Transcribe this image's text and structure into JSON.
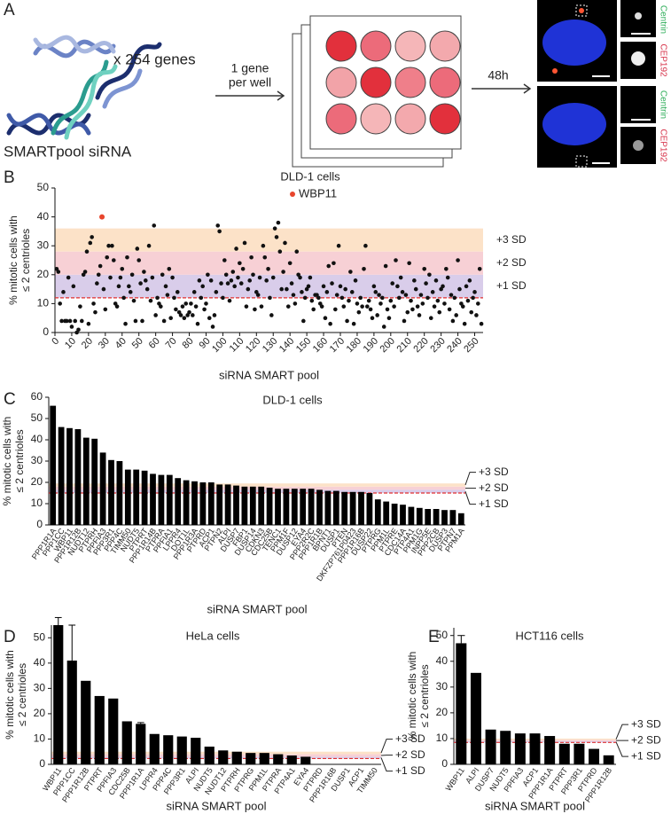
{
  "panel_labels": [
    "A",
    "B",
    "C",
    "D",
    "E"
  ],
  "schematic": {
    "genes_label": "x 254 genes",
    "sirna_label": "SMARTpool siRNA",
    "arrow1_label": [
      "1 gene",
      "per well"
    ],
    "arrow2_label": "48h",
    "stain_labels": [
      "Centrin",
      "CEP192",
      "Centrin",
      "CEP192"
    ]
  },
  "chart_data": [
    {
      "type": "scatter",
      "title": "DLD-1 cells",
      "x_label": "siRNA SMART pool",
      "y_label": [
        "% mitotic cells with",
        "≤ 2 centrioles"
      ],
      "xlim": [
        0,
        255
      ],
      "xticks": [
        0,
        10,
        20,
        30,
        40,
        50,
        60,
        70,
        80,
        90,
        100,
        110,
        120,
        130,
        140,
        150,
        160,
        170,
        180,
        190,
        200,
        210,
        220,
        230,
        240,
        250
      ],
      "ylim": [
        0,
        50
      ],
      "yticks": [
        0,
        10,
        20,
        30,
        40,
        50
      ],
      "thresholds": {
        "mean": 12,
        "levels": [
          20,
          28,
          36
        ],
        "labels": [
          "+1 SD",
          "+2 SD",
          "+3 SD"
        ],
        "colors": [
          "#d9cdea",
          "#f7d0d5",
          "#fce2c8"
        ],
        "mean_color": "#e03030"
      },
      "series": [
        {
          "color": "#111111",
          "x": [
            1,
            2,
            3,
            4,
            5,
            6,
            7,
            8,
            9,
            10,
            11,
            12,
            13,
            14,
            15,
            16,
            17,
            18,
            19,
            20,
            21,
            22,
            23,
            24,
            25,
            26,
            27,
            28,
            29,
            30,
            31,
            32,
            33,
            34,
            35,
            36,
            37,
            38,
            39,
            40,
            41,
            42,
            43,
            44,
            45,
            46,
            47,
            48,
            49,
            50,
            51,
            52,
            53,
            54,
            55,
            56,
            57,
            58,
            59,
            60,
            61,
            62,
            63,
            64,
            65,
            66,
            67,
            68,
            69,
            70,
            71,
            72,
            73,
            74,
            75,
            76,
            77,
            78,
            79,
            80,
            81,
            82,
            83,
            84,
            85,
            86,
            87,
            88,
            89,
            90,
            91,
            92,
            93,
            94,
            95,
            96,
            97,
            98,
            99,
            100,
            101,
            102,
            103,
            104,
            105,
            106,
            107,
            108,
            109,
            110,
            111,
            112,
            113,
            114,
            115,
            116,
            117,
            118,
            119,
            120,
            121,
            122,
            123,
            124,
            125,
            126,
            127,
            128,
            129,
            130,
            131,
            132,
            133,
            134,
            135,
            136,
            137,
            138,
            139,
            140,
            141,
            142,
            143,
            144,
            145,
            146,
            147,
            148,
            149,
            150,
            151,
            152,
            153,
            154,
            155,
            156,
            157,
            158,
            159,
            160,
            161,
            162,
            163,
            164,
            165,
            166,
            167,
            168,
            169,
            170,
            171,
            172,
            173,
            174,
            175,
            176,
            177,
            178,
            179,
            180,
            181,
            182,
            183,
            184,
            185,
            186,
            187,
            188,
            189,
            190,
            191,
            192,
            193,
            194,
            195,
            196,
            197,
            198,
            199,
            200,
            201,
            202,
            203,
            204,
            205,
            206,
            207,
            208,
            209,
            210,
            211,
            212,
            213,
            214,
            215,
            216,
            217,
            218,
            219,
            220,
            221,
            222,
            223,
            224,
            225,
            226,
            227,
            228,
            229,
            230,
            231,
            232,
            233,
            234,
            235,
            236,
            237,
            238,
            239,
            240,
            241,
            242,
            243,
            244,
            245,
            246,
            247,
            248,
            249,
            250,
            251,
            252,
            253,
            254
          ],
          "values": [
            22,
            21,
            10,
            4,
            14,
            4,
            4,
            19,
            4,
            2,
            16,
            4,
            0,
            1,
            9,
            4,
            20,
            21,
            28,
            3,
            31,
            33,
            10,
            7,
            17,
            20,
            23,
            40,
            15,
            8,
            26,
            30,
            19,
            30,
            25,
            10,
            9,
            16,
            19,
            22,
            12,
            3,
            26,
            16,
            14,
            20,
            11,
            4,
            29,
            25,
            17,
            4,
            21,
            18,
            15,
            30,
            11,
            19,
            37,
            6,
            12,
            10,
            9,
            20,
            4,
            16,
            13,
            22,
            5,
            19,
            12,
            8,
            14,
            7,
            6,
            9,
            5,
            10,
            6,
            7,
            10,
            6,
            14,
            9,
            3,
            18,
            12,
            16,
            8,
            10,
            20,
            5,
            18,
            2,
            6,
            14,
            37,
            35,
            17,
            12,
            25,
            20,
            17,
            11,
            18,
            21,
            16,
            29,
            19,
            24,
            17,
            22,
            31,
            9,
            15,
            18,
            26,
            20,
            8,
            14,
            13,
            19,
            9,
            30,
            26,
            18,
            22,
            12,
            6,
            19,
            36,
            33,
            38,
            28,
            15,
            21,
            31,
            15,
            9,
            24,
            17,
            13,
            10,
            28,
            20,
            19,
            14,
            4,
            12,
            15,
            16,
            19,
            11,
            8,
            13,
            13,
            12,
            10,
            9,
            16,
            5,
            14,
            23,
            3,
            17,
            24,
            8,
            13,
            30,
            16,
            12,
            9,
            15,
            4,
            11,
            21,
            14,
            3,
            18,
            10,
            7,
            12,
            9,
            22,
            30,
            9,
            11,
            8,
            5,
            16,
            14,
            6,
            13,
            10,
            12,
            2,
            23,
            8,
            5,
            11,
            17,
            9,
            25,
            16,
            12,
            19,
            14,
            4,
            13,
            7,
            24,
            11,
            8,
            18,
            15,
            9,
            6,
            13,
            10,
            22,
            17,
            12,
            20,
            5,
            14,
            9,
            18,
            11,
            7,
            15,
            16,
            10,
            22,
            19,
            8,
            13,
            4,
            12,
            6,
            25,
            15,
            10,
            9,
            3,
            16,
            11,
            18,
            7,
            12,
            14,
            6,
            10,
            22,
            3
          ]
        },
        {
          "name": "WBP11",
          "color": "#e8452c",
          "x": [
            28
          ],
          "values": [
            40
          ]
        }
      ]
    },
    {
      "type": "bar",
      "title": "DLD-1 cells",
      "x_label": "siRNA SMART pool",
      "y_label": [
        "% mitotic cells with",
        "≤ 2 centrioles"
      ],
      "color": "#000000",
      "ylim": [
        0,
        60
      ],
      "yticks": [
        0,
        10,
        20,
        30,
        40,
        50,
        60
      ],
      "thresholds": {
        "mean": 15,
        "levels": [
          16.5,
          18,
          19.5
        ],
        "labels": [
          "+1 SD",
          "+2 SD",
          "+3 SD"
        ],
        "colors": [
          "#d9cdea",
          "#f7d0d5",
          "#fce2c8"
        ],
        "mean_color": "#e03030"
      },
      "categories": [
        "PPP1R1A",
        "PPP1CC",
        "WBP11",
        "PPP1R12B",
        "NUDT12",
        "PTPRH",
        "PPFIA3",
        "PPP3R1",
        "PPP4C",
        "TIMM50",
        "NUDT5",
        "PTPRT",
        "PPP1R14B",
        "PTPRA",
        "PPFIA1",
        "LPPR4",
        "DOT1L",
        "PPP1R3A",
        "PTPRD",
        "ACP1",
        "PTPN2",
        "ALPI",
        "DUSP7",
        "FBP1",
        "DUSP14",
        "CDKN3",
        "CDC25B",
        "TENC1",
        "PPM1F",
        "DUSP12",
        "EYA4",
        "PPP2R2C",
        "PPP1R1B",
        "BPNT1",
        "DUSP1",
        "PTEN",
        "DKFZP761P0423",
        "PPP1R16B",
        "DUSP22",
        "PTPRG",
        "PPM1L",
        "PTPRE",
        "CDC14A",
        "PTP4A1",
        "PPM1G",
        "INPP5E",
        "PPP2CB",
        "DUSP3",
        "PTPN7",
        "PPM1A"
      ],
      "values": [
        56,
        46,
        45.5,
        45,
        41,
        40.5,
        34,
        30.5,
        30,
        26,
        26,
        25.5,
        24,
        23.5,
        23.5,
        22,
        21,
        20.5,
        20,
        20,
        19,
        19,
        18.5,
        18,
        18,
        18,
        17.5,
        17,
        17,
        17,
        17,
        17,
        16.5,
        16,
        16,
        15.5,
        15.5,
        15.5,
        15,
        12,
        11,
        10,
        9.5,
        8.5,
        8,
        7.5,
        7.5,
        7,
        7,
        5.5
      ]
    },
    {
      "type": "bar",
      "title": "HeLa cells",
      "x_label": "siRNA SMART pool",
      "y_label": [
        "% mitotic cells with",
        "≤ 2 centrioles"
      ],
      "color": "#000000",
      "ylim": [
        0,
        55
      ],
      "yticks": [
        0,
        10,
        20,
        30,
        40,
        50
      ],
      "thresholds": {
        "mean": 2.3,
        "levels": [
          3,
          4,
          5
        ],
        "labels": [
          "+1 SD",
          "+2 SD",
          "+3 SD"
        ],
        "colors": [
          "#d9cdea",
          "#f7d0d5",
          "#fce2c8"
        ],
        "mean_color": "#e03030"
      },
      "categories": [
        "WBP11",
        "PPP1CC",
        "PPP1R12B",
        "PTPRT",
        "PPFIA3",
        "CDC25B",
        "PPP1R1A",
        "LPPR4",
        "PPP4C",
        "PPP3R1",
        "ALPI",
        "NUDT5",
        "NUDT12",
        "PTPRH",
        "PTPRG",
        "PPM1L",
        "PTPRA",
        "PTP4A1",
        "EYA4",
        "PTPRD",
        "PPP1R16B",
        "DUSP1",
        "ACP1",
        "TIMM50"
      ],
      "values": [
        55,
        41,
        33,
        27,
        26,
        17,
        16,
        12,
        11.5,
        11,
        10.5,
        7,
        5.5,
        5,
        4.5,
        4.5,
        4,
        3.5,
        3,
        0,
        0,
        0,
        0,
        0
      ],
      "errors": [
        3,
        14,
        null,
        null,
        null,
        null,
        0.5,
        null,
        null,
        null,
        null,
        null,
        null,
        null,
        null,
        null,
        null,
        null,
        null,
        null,
        null,
        null,
        null,
        null
      ]
    },
    {
      "type": "bar",
      "title": "HCT116 cells",
      "x_label": "siRNA SMART pool",
      "y_label": [
        "% mitotic cells with",
        "≤ 2 centrioles"
      ],
      "color": "#000000",
      "ylim": [
        0,
        53
      ],
      "yticks": [
        0,
        10,
        20,
        30,
        40,
        50
      ],
      "thresholds": {
        "mean": 8.5,
        "levels": [
          9,
          9.5,
          10
        ],
        "labels": [
          "+1 SD",
          "+2 SD",
          "+3 SD"
        ],
        "colors": [
          "#d9cdea",
          "#f7d0d5",
          "#fce2c8"
        ],
        "mean_color": "#e03030"
      },
      "categories": [
        "WBP11",
        "ALPI",
        "DUSP7",
        "NUDT5",
        "PPFIA3",
        "ACP1",
        "PPP1R1A",
        "PTPRT",
        "PPP3R1",
        "PTPRD",
        "PPP1R12B"
      ],
      "values": [
        47,
        35.5,
        13.5,
        13,
        12,
        12,
        11,
        8,
        8,
        6,
        3.5
      ],
      "errors": [
        3,
        null,
        null,
        null,
        null,
        null,
        null,
        null,
        null,
        null,
        null
      ]
    }
  ]
}
